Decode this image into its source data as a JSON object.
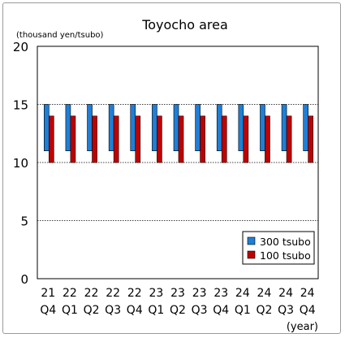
{
  "chart_data": {
    "type": "bar",
    "title": "Toyocho area",
    "ylabel": "(thousand yen/tsubo)",
    "xlabel": "(year)",
    "ylim": [
      0,
      20
    ],
    "yticks": [
      0,
      5,
      10,
      15,
      20
    ],
    "grid": true,
    "legend_position": "bottom-right",
    "floating_bars": true,
    "categories": [
      {
        "year": "21",
        "quarter": "Q4"
      },
      {
        "year": "22",
        "quarter": "Q1"
      },
      {
        "year": "22",
        "quarter": "Q2"
      },
      {
        "year": "22",
        "quarter": "Q3"
      },
      {
        "year": "22",
        "quarter": "Q4"
      },
      {
        "year": "23",
        "quarter": "Q1"
      },
      {
        "year": "23",
        "quarter": "Q2"
      },
      {
        "year": "23",
        "quarter": "Q3"
      },
      {
        "year": "23",
        "quarter": "Q4"
      },
      {
        "year": "24",
        "quarter": "Q1"
      },
      {
        "year": "24",
        "quarter": "Q2"
      },
      {
        "year": "24",
        "quarter": "Q3"
      },
      {
        "year": "24",
        "quarter": "Q4"
      }
    ],
    "series": [
      {
        "name": "300 tsubo",
        "color": "#1f7fd6",
        "low": [
          11,
          11,
          11,
          11,
          11,
          11,
          11,
          11,
          11,
          11,
          11,
          11,
          11
        ],
        "high": [
          15,
          15,
          15,
          15,
          15,
          15,
          15,
          15,
          15,
          15,
          15,
          15,
          15
        ]
      },
      {
        "name": "100 tsubo",
        "color": "#c00000",
        "low": [
          10,
          10,
          10,
          10,
          10,
          10,
          10,
          10,
          10,
          10,
          10,
          10,
          10
        ],
        "high": [
          14,
          14,
          14,
          14,
          14,
          14,
          14,
          14,
          14,
          14,
          14,
          14,
          14
        ]
      }
    ]
  }
}
